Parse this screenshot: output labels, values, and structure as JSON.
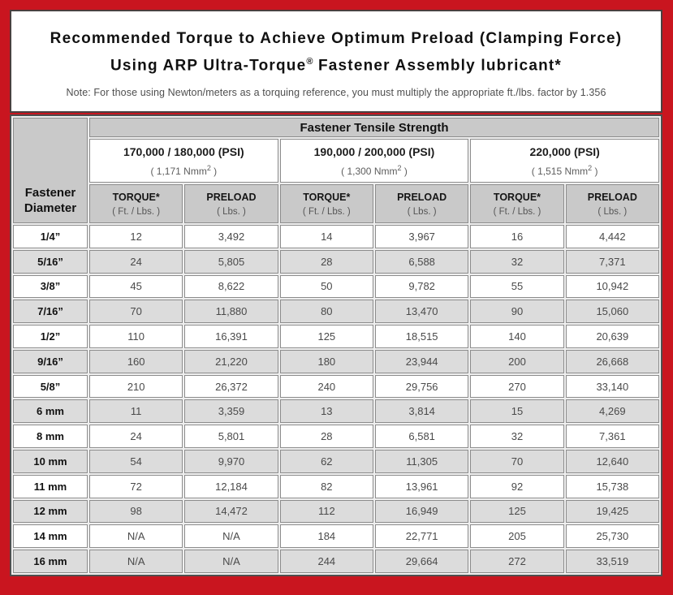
{
  "title": {
    "line1": "Recommended Torque to Achieve Optimum Preload (Clamping Force)",
    "line2_pre": "Using ARP Ultra-Torque",
    "line2_sup": "®",
    "line2_post": " Fastener Assembly lubricant*",
    "note": "Note: For those using Newton/meters as a torquing reference, you must multiply the appropriate ft./lbs. factor by 1.356"
  },
  "colors": {
    "frame_red": "#C9151F",
    "header_gray": "#c9c9c9",
    "stripe_gray": "#dcdcdc"
  },
  "table": {
    "corner_header": "Fastener Diameter",
    "main_header": "Fastener Tensile Strength",
    "strength_groups": [
      {
        "psi": "170,000 / 180,000 (PSI)",
        "nmm_prefix": "( 1,171 Nmm",
        "nmm_sup": "2",
        "nmm_suffix": " )"
      },
      {
        "psi": "190,000 / 200,000 (PSI)",
        "nmm_prefix": "( 1,300 Nmm",
        "nmm_sup": "2",
        "nmm_suffix": " )"
      },
      {
        "psi": "220,000 (PSI)",
        "nmm_prefix": "( 1,515 Nmm",
        "nmm_sup": "2",
        "nmm_suffix": " )"
      }
    ],
    "unit_headers": [
      {
        "label": "TORQUE*",
        "unit": "( Ft. / Lbs. )"
      },
      {
        "label": "PRELOAD",
        "unit": "( Lbs. )"
      },
      {
        "label": "TORQUE*",
        "unit": "( Ft. / Lbs. )"
      },
      {
        "label": "PRELOAD",
        "unit": "( Lbs. )"
      },
      {
        "label": "TORQUE*",
        "unit": "( Ft. / Lbs. )"
      },
      {
        "label": "PRELOAD",
        "unit": "( Lbs. )"
      }
    ],
    "rows": [
      {
        "diameter": "1/4”",
        "values": [
          "12",
          "3,492",
          "14",
          "3,967",
          "16",
          "4,442"
        ]
      },
      {
        "diameter": "5/16”",
        "values": [
          "24",
          "5,805",
          "28",
          "6,588",
          "32",
          "7,371"
        ]
      },
      {
        "diameter": "3/8”",
        "values": [
          "45",
          "8,622",
          "50",
          "9,782",
          "55",
          "10,942"
        ]
      },
      {
        "diameter": "7/16”",
        "values": [
          "70",
          "11,880",
          "80",
          "13,470",
          "90",
          "15,060"
        ]
      },
      {
        "diameter": "1/2”",
        "values": [
          "110",
          "16,391",
          "125",
          "18,515",
          "140",
          "20,639"
        ]
      },
      {
        "diameter": "9/16”",
        "values": [
          "160",
          "21,220",
          "180",
          "23,944",
          "200",
          "26,668"
        ]
      },
      {
        "diameter": "5/8”",
        "values": [
          "210",
          "26,372",
          "240",
          "29,756",
          "270",
          "33,140"
        ]
      },
      {
        "diameter": "6 mm",
        "values": [
          "11",
          "3,359",
          "13",
          "3,814",
          "15",
          "4,269"
        ]
      },
      {
        "diameter": "8 mm",
        "values": [
          "24",
          "5,801",
          "28",
          "6,581",
          "32",
          "7,361"
        ]
      },
      {
        "diameter": "10 mm",
        "values": [
          "54",
          "9,970",
          "62",
          "11,305",
          "70",
          "12,640"
        ]
      },
      {
        "diameter": "11 mm",
        "values": [
          "72",
          "12,184",
          "82",
          "13,961",
          "92",
          "15,738"
        ]
      },
      {
        "diameter": "12 mm",
        "values": [
          "98",
          "14,472",
          "112",
          "16,949",
          "125",
          "19,425"
        ]
      },
      {
        "diameter": "14 mm",
        "values": [
          "N/A",
          "N/A",
          "184",
          "22,771",
          "205",
          "25,730"
        ]
      },
      {
        "diameter": "16 mm",
        "values": [
          "N/A",
          "N/A",
          "244",
          "29,664",
          "272",
          "33,519"
        ]
      }
    ]
  }
}
